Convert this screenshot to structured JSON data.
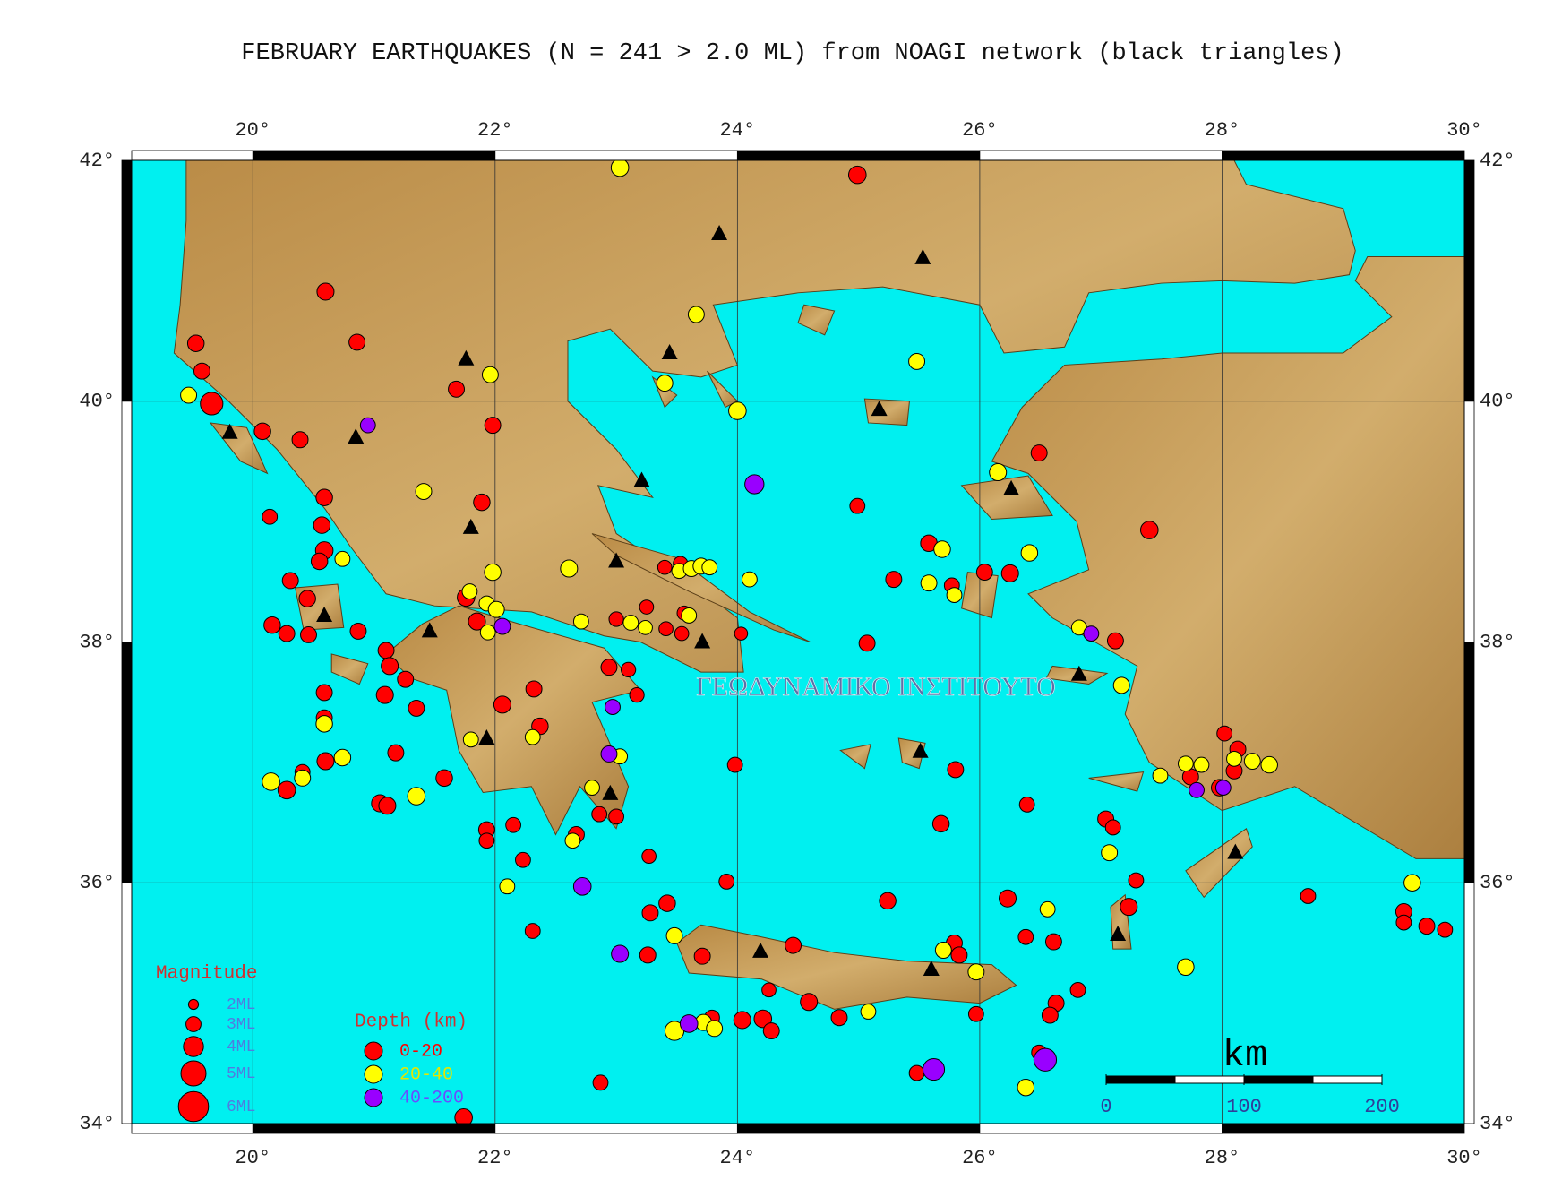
{
  "chart_data": {
    "type": "map",
    "title": "FEBRUARY EARTHQUAKES (N = 241 > 2.0 ML) from NOAGI network (black triangles)",
    "watermark": "ΓΕΩΔΥΝΑΜΙΚΟ ΙΝΣΤΙΤΟΥΤΟ",
    "xlim": [
      19,
      30
    ],
    "ylim": [
      34,
      42
    ],
    "xticks": [
      {
        "value": 20,
        "label": "20°"
      },
      {
        "value": 22,
        "label": "22°"
      },
      {
        "value": 24,
        "label": "24°"
      },
      {
        "value": 26,
        "label": "26°"
      },
      {
        "value": 28,
        "label": "28°"
      },
      {
        "value": 30,
        "label": "30°"
      }
    ],
    "yticks": [
      {
        "value": 34,
        "label": "34°"
      },
      {
        "value": 36,
        "label": "36°"
      },
      {
        "value": 38,
        "label": "38°"
      },
      {
        "value": 40,
        "label": "40°"
      },
      {
        "value": 42,
        "label": "42°"
      }
    ],
    "grid": true,
    "size_legend": {
      "title": "Magnitude",
      "entries": [
        {
          "value": 2,
          "label": "2ML"
        },
        {
          "value": 3,
          "label": "3ML"
        },
        {
          "value": 4,
          "label": "4ML"
        },
        {
          "value": 5,
          "label": "5ML"
        },
        {
          "value": 6,
          "label": "6ML"
        }
      ]
    },
    "depth_legend_title": "Depth (km)",
    "series": [
      {
        "name": "0-20",
        "color": "#ff0000",
        "points": [
          [
            24.99,
            41.88,
            3.5
          ],
          [
            20.6,
            40.91,
            3.4
          ],
          [
            20.86,
            40.49,
            3.2
          ],
          [
            19.53,
            40.48,
            3.3
          ],
          [
            19.58,
            40.25,
            3.2
          ],
          [
            19.66,
            39.98,
            4.5
          ],
          [
            20.08,
            39.75,
            3.3
          ],
          [
            20.39,
            39.68,
            3.2
          ],
          [
            21.68,
            40.1,
            3.2
          ],
          [
            21.98,
            39.8,
            3.2
          ],
          [
            21.89,
            39.16,
            3.3
          ],
          [
            26.49,
            39.57,
            3.2
          ],
          [
            27.4,
            38.93,
            3.5
          ],
          [
            24.99,
            39.13,
            3.0
          ],
          [
            20.14,
            39.04,
            3.0
          ],
          [
            20.59,
            39.2,
            3.3
          ],
          [
            20.57,
            38.97,
            3.3
          ],
          [
            20.59,
            38.76,
            3.5
          ],
          [
            20.55,
            38.67,
            3.3
          ],
          [
            20.31,
            38.51,
            3.2
          ],
          [
            20.45,
            38.36,
            3.3
          ],
          [
            20.16,
            38.14,
            3.3
          ],
          [
            20.28,
            38.07,
            3.2
          ],
          [
            20.46,
            38.06,
            3.2
          ],
          [
            20.87,
            38.09,
            3.2
          ],
          [
            21.1,
            37.93,
            3.2
          ],
          [
            21.13,
            37.8,
            3.4
          ],
          [
            21.26,
            37.69,
            3.2
          ],
          [
            21.09,
            37.56,
            3.4
          ],
          [
            21.35,
            37.45,
            3.2
          ],
          [
            20.59,
            37.58,
            3.2
          ],
          [
            20.59,
            37.37,
            3.2
          ],
          [
            20.6,
            37.01,
            3.4
          ],
          [
            20.41,
            36.92,
            3.0
          ],
          [
            20.28,
            36.77,
            3.5
          ],
          [
            21.18,
            37.08,
            3.2
          ],
          [
            21.05,
            36.66,
            3.4
          ],
          [
            21.11,
            36.64,
            3.4
          ],
          [
            21.58,
            36.87,
            3.3
          ],
          [
            21.76,
            38.37,
            3.5
          ],
          [
            21.85,
            38.17,
            3.4
          ],
          [
            22.06,
            37.48,
            3.4
          ],
          [
            22.32,
            37.61,
            3.2
          ],
          [
            22.37,
            37.3,
            3.3
          ],
          [
            21.93,
            36.44,
            3.2
          ],
          [
            21.93,
            36.35,
            3.0
          ],
          [
            22.15,
            36.48,
            3.0
          ],
          [
            22.23,
            36.19,
            3.0
          ],
          [
            22.31,
            35.6,
            3.0
          ],
          [
            22.67,
            36.4,
            3.2
          ],
          [
            22.86,
            36.57,
            3.0
          ],
          [
            23.0,
            36.55,
            3.0
          ],
          [
            22.94,
            37.79,
            3.2
          ],
          [
            23.1,
            37.77,
            2.9
          ],
          [
            23.17,
            37.56,
            2.9
          ],
          [
            23.27,
            36.22,
            2.8
          ],
          [
            23.0,
            38.19,
            2.9
          ],
          [
            23.25,
            38.29,
            2.8
          ],
          [
            23.41,
            38.11,
            2.8
          ],
          [
            23.56,
            38.24,
            2.8
          ],
          [
            23.54,
            38.07,
            2.8
          ],
          [
            23.4,
            38.62,
            2.8
          ],
          [
            23.53,
            38.65,
            2.9
          ],
          [
            24.03,
            38.07,
            2.6
          ],
          [
            23.98,
            36.98,
            3.0
          ],
          [
            23.91,
            36.01,
            3.0
          ],
          [
            23.28,
            35.75,
            3.2
          ],
          [
            23.42,
            35.83,
            3.3
          ],
          [
            23.26,
            35.4,
            3.2
          ],
          [
            23.71,
            35.39,
            3.2
          ],
          [
            23.79,
            34.88,
            3.0
          ],
          [
            24.04,
            34.86,
            3.4
          ],
          [
            24.21,
            34.87,
            3.5
          ],
          [
            24.28,
            34.77,
            3.2
          ],
          [
            24.26,
            35.11,
            2.8
          ],
          [
            24.46,
            35.48,
            3.2
          ],
          [
            24.59,
            35.01,
            3.4
          ],
          [
            24.84,
            34.88,
            3.2
          ],
          [
            25.24,
            35.85,
            3.3
          ],
          [
            25.07,
            37.99,
            3.2
          ],
          [
            25.29,
            38.52,
            3.2
          ],
          [
            25.58,
            38.82,
            3.3
          ],
          [
            25.77,
            38.47,
            3.0
          ],
          [
            25.8,
            36.94,
            3.2
          ],
          [
            25.68,
            36.49,
            3.3
          ],
          [
            25.79,
            35.5,
            3.2
          ],
          [
            25.83,
            35.4,
            3.2
          ],
          [
            25.97,
            34.91,
            3.0
          ],
          [
            26.04,
            38.58,
            3.2
          ],
          [
            26.25,
            38.57,
            3.4
          ],
          [
            26.23,
            35.87,
            3.4
          ],
          [
            26.39,
            36.65,
            3.0
          ],
          [
            26.38,
            35.55,
            3.0
          ],
          [
            26.61,
            35.51,
            3.2
          ],
          [
            26.63,
            35.0,
            3.2
          ],
          [
            26.58,
            34.9,
            3.2
          ],
          [
            26.81,
            35.11,
            3.0
          ],
          [
            26.49,
            34.59,
            3.0
          ],
          [
            25.48,
            34.42,
            3.0
          ],
          [
            27.12,
            38.01,
            3.2
          ],
          [
            27.04,
            36.53,
            3.2
          ],
          [
            27.1,
            36.46,
            3.0
          ],
          [
            27.23,
            35.8,
            3.4
          ],
          [
            27.29,
            36.02,
            3.0
          ],
          [
            28.02,
            37.24,
            3.0
          ],
          [
            28.13,
            37.11,
            3.2
          ],
          [
            28.1,
            36.93,
            3.2
          ],
          [
            27.74,
            36.88,
            3.2
          ],
          [
            27.98,
            36.79,
            3.3
          ],
          [
            28.71,
            35.89,
            3.0
          ],
          [
            29.5,
            35.76,
            3.2
          ],
          [
            29.5,
            35.67,
            3.0
          ],
          [
            29.69,
            35.64,
            3.2
          ],
          [
            29.84,
            35.61,
            3.0
          ],
          [
            22.87,
            34.34,
            3.0
          ],
          [
            21.74,
            34.05,
            3.5
          ]
        ]
      },
      {
        "name": "20-40",
        "color": "#ffff00",
        "points": [
          [
            23.03,
            41.94,
            3.5
          ],
          [
            23.66,
            40.72,
            3.2
          ],
          [
            25.48,
            40.33,
            3.2
          ],
          [
            23.4,
            40.15,
            3.2
          ],
          [
            24.0,
            39.92,
            3.5
          ],
          [
            21.96,
            40.22,
            3.2
          ],
          [
            19.47,
            40.05,
            3.2
          ],
          [
            21.41,
            39.25,
            3.2
          ],
          [
            26.15,
            39.41,
            3.4
          ],
          [
            26.41,
            38.74,
            3.3
          ],
          [
            25.69,
            38.77,
            3.3
          ],
          [
            25.58,
            38.49,
            3.2
          ],
          [
            25.79,
            38.39,
            3.0
          ],
          [
            21.98,
            38.58,
            3.3
          ],
          [
            21.79,
            38.42,
            3.0
          ],
          [
            21.93,
            38.32,
            3.0
          ],
          [
            22.01,
            38.27,
            3.2
          ],
          [
            21.94,
            38.08,
            3.0
          ],
          [
            22.61,
            38.61,
            3.4
          ],
          [
            22.71,
            38.17,
            3.0
          ],
          [
            23.12,
            38.16,
            3.0
          ],
          [
            23.24,
            38.12,
            2.8
          ],
          [
            23.52,
            38.59,
            3.0
          ],
          [
            23.62,
            38.61,
            3.2
          ],
          [
            23.7,
            38.63,
            3.2
          ],
          [
            23.77,
            38.62,
            3.0
          ],
          [
            24.1,
            38.52,
            3.0
          ],
          [
            23.6,
            38.22,
            3.0
          ],
          [
            20.74,
            38.69,
            3.0
          ],
          [
            20.59,
            37.32,
            3.3
          ],
          [
            20.74,
            37.04,
            3.3
          ],
          [
            20.15,
            36.84,
            3.5
          ],
          [
            20.41,
            36.87,
            3.2
          ],
          [
            21.35,
            36.72,
            3.5
          ],
          [
            21.8,
            37.19,
            3.0
          ],
          [
            22.31,
            37.21,
            3.0
          ],
          [
            22.8,
            36.79,
            3.0
          ],
          [
            23.03,
            37.05,
            3.0
          ],
          [
            22.64,
            36.35,
            3.0
          ],
          [
            22.1,
            35.97,
            3.0
          ],
          [
            23.48,
            34.77,
            3.8
          ],
          [
            23.72,
            34.84,
            3.2
          ],
          [
            23.81,
            34.79,
            3.2
          ],
          [
            23.48,
            35.56,
            3.2
          ],
          [
            25.08,
            34.93,
            3.0
          ],
          [
            25.7,
            35.44,
            3.2
          ],
          [
            25.97,
            35.26,
            3.2
          ],
          [
            26.38,
            34.3,
            3.3
          ],
          [
            26.56,
            35.78,
            3.0
          ],
          [
            27.07,
            36.25,
            3.2
          ],
          [
            27.7,
            35.3,
            3.3
          ],
          [
            27.49,
            36.89,
            3.0
          ],
          [
            27.7,
            36.99,
            3.0
          ],
          [
            27.83,
            36.98,
            3.0
          ],
          [
            28.1,
            37.03,
            3.0
          ],
          [
            28.25,
            37.01,
            3.2
          ],
          [
            28.39,
            36.98,
            3.3
          ],
          [
            29.57,
            36.0,
            3.3
          ],
          [
            27.17,
            37.64,
            3.2
          ],
          [
            26.82,
            38.12,
            3.0
          ]
        ]
      },
      {
        "name": "40-200",
        "color": "#9900ff",
        "points": [
          [
            20.95,
            39.8,
            3.0
          ],
          [
            24.14,
            39.31,
            3.8
          ],
          [
            22.06,
            38.13,
            3.2
          ],
          [
            22.97,
            37.46,
            3.0
          ],
          [
            22.94,
            37.07,
            3.2
          ],
          [
            22.72,
            35.97,
            3.5
          ],
          [
            23.03,
            35.41,
            3.4
          ],
          [
            23.6,
            34.83,
            3.5
          ],
          [
            25.62,
            34.45,
            4.3
          ],
          [
            26.54,
            34.53,
            4.5
          ],
          [
            26.92,
            38.07,
            3.0
          ],
          [
            27.79,
            36.77,
            3.0
          ],
          [
            28.01,
            36.79,
            3.0
          ]
        ]
      }
    ],
    "stations": {
      "color": "#000000",
      "points": [
        [
          19.81,
          39.74
        ],
        [
          20.85,
          39.7
        ],
        [
          21.76,
          40.35
        ],
        [
          21.8,
          38.95
        ],
        [
          20.59,
          38.22
        ],
        [
          21.46,
          38.09
        ],
        [
          21.93,
          37.2
        ],
        [
          22.95,
          36.74
        ],
        [
          23.0,
          38.67
        ],
        [
          23.21,
          39.34
        ],
        [
          23.44,
          40.4
        ],
        [
          23.85,
          41.39
        ],
        [
          25.53,
          41.19
        ],
        [
          25.17,
          39.93
        ],
        [
          26.26,
          39.27
        ],
        [
          23.71,
          38.0
        ],
        [
          24.19,
          35.43
        ],
        [
          25.51,
          37.09
        ],
        [
          25.6,
          35.28
        ],
        [
          26.82,
          37.73
        ],
        [
          27.14,
          35.57
        ],
        [
          28.11,
          36.25
        ]
      ]
    },
    "scale_bar": {
      "unit": "km",
      "ticks": [
        0,
        100,
        200
      ]
    }
  }
}
